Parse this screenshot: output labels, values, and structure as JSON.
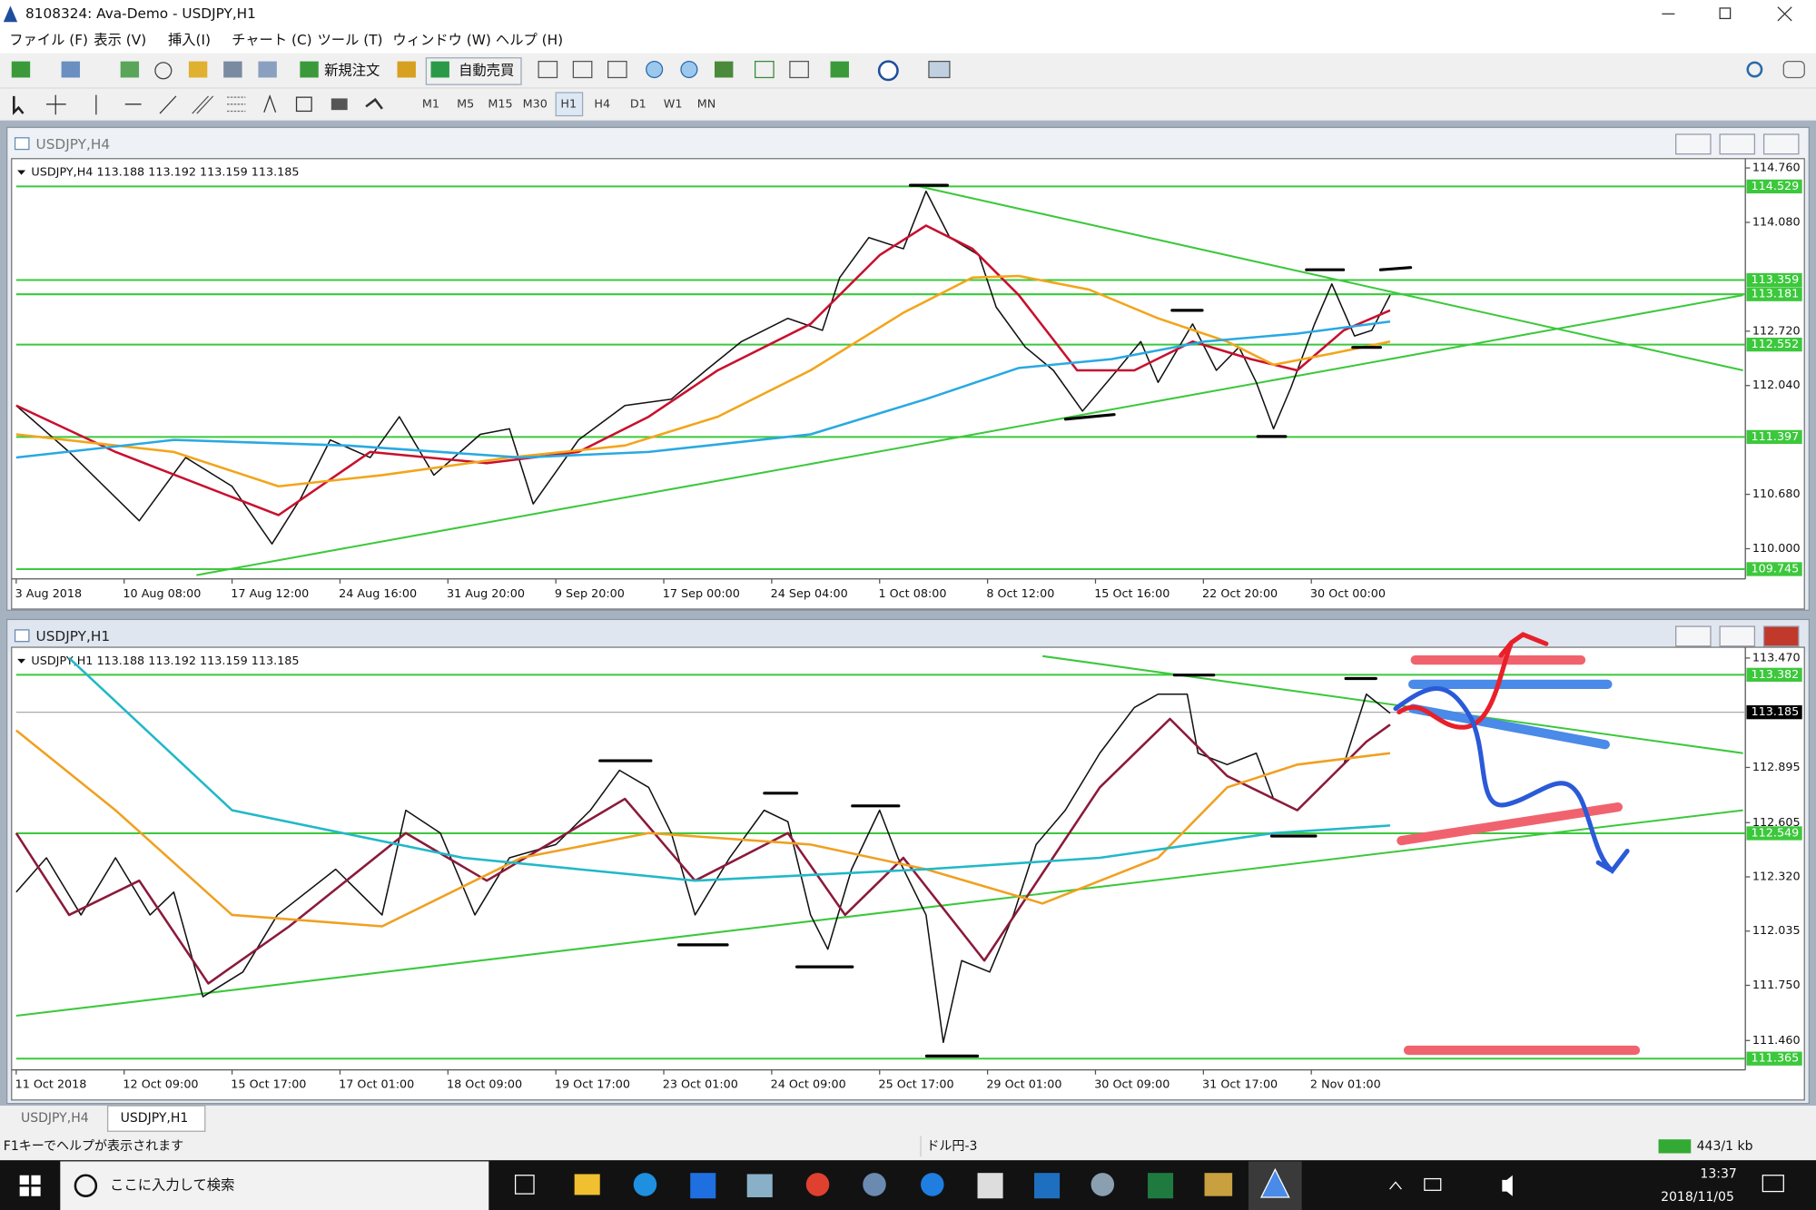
{
  "window": {
    "title": "8108324: Ava-Demo - USDJPY,H1"
  },
  "menu": [
    "ファイル (F)",
    "表示 (V)",
    "挿入(I)",
    "チャート (C)",
    "ツール (T)",
    "ウィンドウ (W)",
    "ヘルプ (H)"
  ],
  "toolbar": {
    "new_order": "新規注文",
    "auto_trade": "自動売買",
    "timeframes": [
      "M1",
      "M5",
      "M15",
      "M30",
      "H1",
      "H4",
      "D1",
      "W1",
      "MN"
    ]
  },
  "chart_data": [
    {
      "type": "line",
      "window_title": "USDJPY,H4",
      "info": "USDJPY,H4  113.188 113.192 113.159 113.185",
      "xlim": [
        0,
        160
      ],
      "ylim": [
        109.68,
        114.79
      ],
      "xticks": [
        {
          "value": 0,
          "label": "3 Aug 2018"
        },
        {
          "value": 10,
          "label": "10 Aug 08:00"
        },
        {
          "value": 20,
          "label": "17 Aug 12:00"
        },
        {
          "value": 30,
          "label": "24 Aug 16:00"
        },
        {
          "value": 40,
          "label": "31 Aug 20:00"
        },
        {
          "value": 50,
          "label": "9 Sep 20:00"
        },
        {
          "value": 60,
          "label": "17 Sep 00:00"
        },
        {
          "value": 70,
          "label": "24 Sep 04:00"
        },
        {
          "value": 80,
          "label": "1 Oct 08:00"
        },
        {
          "value": 90,
          "label": "8 Oct 12:00"
        },
        {
          "value": 100,
          "label": "15 Oct 16:00"
        },
        {
          "value": 110,
          "label": "22 Oct 20:00"
        },
        {
          "value": 120,
          "label": "30 Oct 00:00"
        }
      ],
      "yticks": [
        {
          "value": 114.76,
          "label": "114.760"
        },
        {
          "value": 114.08,
          "label": "114.080"
        },
        {
          "value": 112.72,
          "label": "112.720"
        },
        {
          "value": 112.04,
          "label": "112.040"
        },
        {
          "value": 110.68,
          "label": "110.680"
        },
        {
          "value": 110,
          "label": "110.000"
        }
      ],
      "series": [
        {
          "color": "#111111",
          "x": [
            0,
            4.9,
            11.4,
            15.7,
            20.0,
            23.7,
            26.4,
            29.1,
            32.8,
            35.5,
            38.7,
            43.0,
            45.7,
            47.9,
            52.1,
            56.4,
            60.7,
            63.9,
            67.2,
            71.5,
            74.7,
            76.3,
            79.0,
            82.2,
            84.3,
            86.5,
            89.2,
            90.8,
            93.5,
            96.1,
            98.8,
            102.0,
            104.2,
            105.8,
            109.0,
            111.2,
            113.3,
            114.9,
            116.5,
            118.1,
            120.3,
            121.9,
            124.0,
            125.6,
            127.3
          ],
          "values": [
            111.79,
            111.21,
            110.35,
            111.14,
            110.78,
            110.06,
            110.64,
            111.36,
            111.14,
            111.65,
            110.92,
            111.43,
            111.5,
            110.56,
            111.36,
            111.79,
            111.87,
            112.23,
            112.59,
            112.88,
            112.73,
            113.39,
            113.89,
            113.75,
            114.47,
            113.89,
            113.67,
            113.02,
            112.52,
            112.23,
            111.72,
            112.23,
            112.59,
            112.08,
            112.81,
            112.23,
            112.52,
            112.08,
            111.5,
            112.01,
            112.81,
            113.31,
            112.66,
            112.73,
            113.17
          ]
        },
        {
          "color": "#c8102e",
          "x": [
            0,
            9.2,
            24.3,
            32.8,
            43.6,
            52.1,
            58.6,
            65.0,
            73.6,
            80.0,
            84.3,
            88.6,
            92.9,
            98.3,
            103.6,
            109.0,
            114.4,
            118.7,
            123.0,
            127.3
          ],
          "values": [
            111.79,
            111.21,
            110.42,
            111.21,
            111.07,
            111.21,
            111.65,
            112.23,
            112.81,
            113.67,
            114.04,
            113.75,
            113.17,
            112.23,
            112.23,
            112.59,
            112.37,
            112.23,
            112.73,
            112.98
          ]
        },
        {
          "color": "#f2a51a",
          "x": [
            0,
            14.6,
            24.3,
            33.9,
            45.7,
            56.4,
            65.0,
            73.6,
            82.2,
            88.6,
            92.9,
            99.4,
            105.8,
            112.2,
            116.5,
            121.9,
            127.3
          ],
          "values": [
            111.43,
            111.21,
            110.78,
            110.92,
            111.14,
            111.29,
            111.65,
            112.23,
            112.95,
            113.39,
            113.41,
            113.24,
            112.88,
            112.59,
            112.3,
            112.44,
            112.59
          ]
        },
        {
          "color": "#29a9e1",
          "x": [
            0,
            14.6,
            30.7,
            46.8,
            58.6,
            73.6,
            84.3,
            92.9,
            101.5,
            110.1,
            118.7,
            127.3
          ],
          "values": [
            111.14,
            111.36,
            111.29,
            111.14,
            111.21,
            111.43,
            111.87,
            112.26,
            112.37,
            112.59,
            112.69,
            112.84
          ]
        }
      ],
      "trendlines": [
        {
          "x": [
            16.7,
            160
          ],
          "values": [
            109.67,
            113.17
          ]
        },
        {
          "x": [
            83.3,
            160
          ],
          "values": [
            114.54,
            112.23
          ]
        }
      ],
      "levels": [
        114.529,
        113.359,
        113.181,
        112.552,
        111.397,
        109.745
      ],
      "level_color": "#3cc83c"
    },
    {
      "type": "line",
      "window_title": "USDJPY,H1",
      "info": "USDJPY,H1  113.188 113.192 113.159 113.185",
      "xlim": [
        0,
        160
      ],
      "ylim": [
        111.33,
        113.49
      ],
      "xticks": [
        {
          "value": 0,
          "label": "11 Oct 2018"
        },
        {
          "value": 10,
          "label": "12 Oct 09:00"
        },
        {
          "value": 20,
          "label": "15 Oct 17:00"
        },
        {
          "value": 30,
          "label": "17 Oct 01:00"
        },
        {
          "value": 40,
          "label": "18 Oct 09:00"
        },
        {
          "value": 50,
          "label": "19 Oct 17:00"
        },
        {
          "value": 60,
          "label": "23 Oct 01:00"
        },
        {
          "value": 70,
          "label": "24 Oct 09:00"
        },
        {
          "value": 80,
          "label": "25 Oct 17:00"
        },
        {
          "value": 90,
          "label": "29 Oct 01:00"
        },
        {
          "value": 100,
          "label": "30 Oct 09:00"
        },
        {
          "value": 110,
          "label": "31 Oct 17:00"
        },
        {
          "value": 120,
          "label": "2 Nov 01:00"
        }
      ],
      "yticks": [
        {
          "value": 113.47,
          "label": "113.470"
        },
        112.895,
        112.605,
        {
          "value": 112.32,
          "label": "112.320"
        },
        112.035,
        {
          "value": 111.75,
          "label": "111.750"
        },
        {
          "value": 111.46,
          "label": "111.460"
        }
      ],
      "series": [
        {
          "color": "#111111",
          "x": [
            0,
            2.8,
            6.0,
            9.2,
            12.4,
            14.6,
            17.3,
            21.0,
            24.2,
            29.6,
            33.9,
            36.1,
            39.3,
            42.5,
            45.7,
            50.0,
            53.2,
            55.9,
            58.6,
            60.7,
            62.9,
            66.1,
            69.3,
            71.5,
            73.6,
            75.2,
            77.4,
            80.0,
            81.7,
            84.3,
            85.9,
            87.6,
            90.2,
            92.4,
            94.5,
            97.2,
            100.4,
            103.6,
            105.8,
            108.5,
            109.5,
            112.2,
            114.9,
            116.5,
            118.7,
            120.8,
            123.0,
            125.1,
            127.3
          ],
          "values": [
            112.24,
            112.42,
            112.12,
            112.42,
            112.12,
            112.24,
            111.69,
            111.82,
            112.12,
            112.36,
            112.12,
            112.67,
            112.55,
            112.12,
            112.42,
            112.49,
            112.67,
            112.88,
            112.79,
            112.55,
            112.12,
            112.42,
            112.67,
            112.61,
            112.12,
            111.94,
            112.36,
            112.67,
            112.42,
            112.12,
            111.45,
            111.88,
            111.82,
            112.12,
            112.49,
            112.67,
            112.97,
            113.21,
            113.28,
            113.28,
            112.97,
            112.91,
            112.97,
            112.73,
            112.67,
            112.79,
            112.91,
            113.28,
            113.18
          ]
        },
        {
          "color": "#8b1a3a",
          "x": [
            0,
            4.9,
            11.4,
            17.8,
            25.3,
            36.1,
            43.6,
            56.4,
            62.9,
            71.5,
            76.8,
            82.2,
            89.7,
            100.4,
            106.9,
            112.2,
            118.7,
            125.1,
            127.3
          ],
          "values": [
            112.55,
            112.12,
            112.3,
            111.76,
            112.06,
            112.55,
            112.3,
            112.73,
            112.3,
            112.55,
            112.12,
            112.42,
            111.88,
            112.79,
            113.15,
            112.85,
            112.67,
            113.03,
            113.12
          ]
        },
        {
          "color": "#f0a020",
          "x": [
            0,
            9.2,
            20.0,
            33.9,
            46.8,
            58.6,
            73.6,
            84.3,
            95.1,
            105.8,
            112.2,
            118.7,
            127.3
          ],
          "values": [
            113.09,
            112.67,
            112.12,
            112.06,
            112.42,
            112.55,
            112.49,
            112.36,
            112.18,
            112.42,
            112.79,
            112.91,
            112.97
          ]
        },
        {
          "color": "#21b8c8",
          "x": [
            4.9,
            20.0,
            41.4,
            62.9,
            84.3,
            100.4,
            116.5,
            127.3
          ],
          "values": [
            113.47,
            112.67,
            112.42,
            112.3,
            112.36,
            112.42,
            112.55,
            112.59
          ]
        }
      ],
      "trendlines": [
        {
          "x": [
            0,
            160
          ],
          "values": [
            111.59,
            112.67
          ]
        },
        {
          "x": [
            95.1,
            160
          ],
          "values": [
            113.48,
            112.97
          ]
        }
      ],
      "levels": [
        113.382,
        112.549,
        111.365
      ],
      "level_color": "#3cc83c",
      "price_line": 113.185
    }
  ],
  "tabs": [
    "USDJPY,H4",
    "USDJPY,H1"
  ],
  "status": {
    "help": "F1キーでヘルプが表示されます",
    "profile": "ドル円-3",
    "traffic": "443/1 kb"
  },
  "taskbar": {
    "search": "ここに入力して検索",
    "time": "13:37",
    "date": "2018/11/05"
  }
}
